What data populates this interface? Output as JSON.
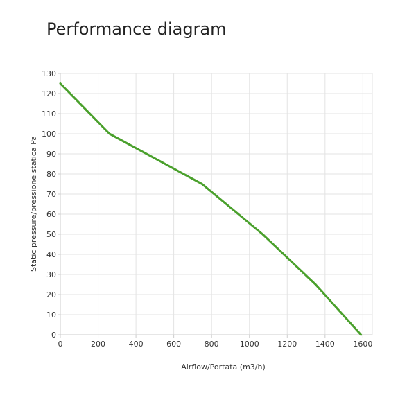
{
  "chart_data": {
    "type": "line",
    "title": "Performance diagram",
    "xlabel": "Airflow/Portata (m3/h)",
    "ylabel": "Static pressure/pressione statica Pa",
    "xlim": [
      0,
      1650
    ],
    "ylim": [
      0,
      130
    ],
    "x_ticks": [
      0,
      200,
      400,
      600,
      800,
      1000,
      1200,
      1400,
      1600
    ],
    "y_ticks": [
      0,
      10,
      20,
      30,
      40,
      50,
      60,
      70,
      80,
      90,
      100,
      110,
      120,
      130
    ],
    "grid": true,
    "legend": "none",
    "series": [
      {
        "color": "#4aa02c",
        "x": [
          0,
          260,
          750,
          1070,
          1350,
          1590
        ],
        "y": [
          125,
          100,
          75,
          50,
          25,
          0
        ]
      }
    ]
  }
}
